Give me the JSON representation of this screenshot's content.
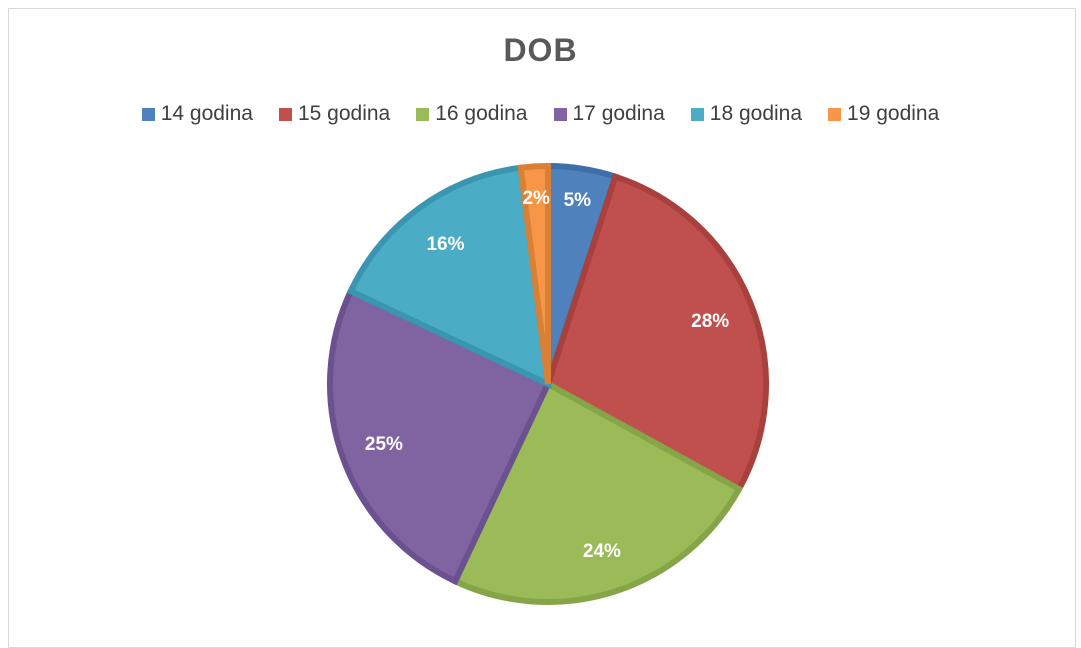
{
  "chart_data": {
    "type": "pie",
    "title": "DOB",
    "legend_position": "top",
    "categories": [
      "14 godina",
      "15 godina",
      "16 godina",
      "17 godina",
      "18 godina",
      "19 godina"
    ],
    "values": [
      5,
      28,
      24,
      25,
      16,
      2
    ],
    "labels": [
      "5%",
      "28%",
      "24%",
      "25%",
      "16%",
      "2%"
    ],
    "colors": [
      "#4f81bd",
      "#c0504d",
      "#9bbb59",
      "#8064a2",
      "#4bacc6",
      "#f79646"
    ],
    "edge_colors": [
      "#3f6fa8",
      "#a8403d",
      "#86a548",
      "#6b5190",
      "#3a96b0",
      "#d97f36"
    ]
  }
}
